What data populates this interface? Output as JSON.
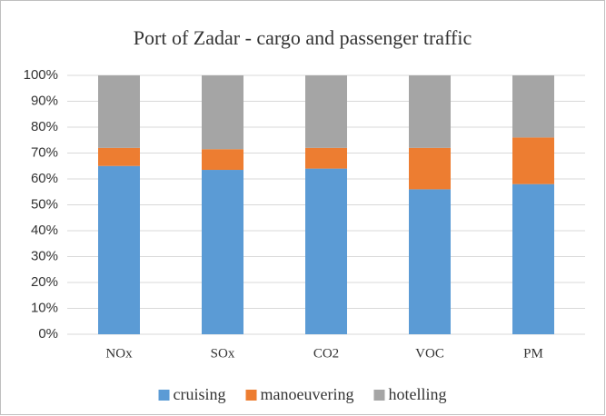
{
  "chart_data": {
    "type": "stacked_bar",
    "title": "Port of Zadar - cargo and passenger traffic",
    "categories": [
      "NOx",
      "SOx",
      "CO2",
      "VOC",
      "PM"
    ],
    "series": [
      {
        "name": "cruising",
        "color": "#5b9bd5",
        "values": [
          65,
          63.5,
          64,
          56,
          58
        ]
      },
      {
        "name": "manoeuvering",
        "color": "#ed7d31",
        "values": [
          7,
          8,
          8,
          16,
          18
        ]
      },
      {
        "name": "hotelling",
        "color": "#a5a5a5",
        "values": [
          28,
          28.5,
          28,
          28,
          24
        ]
      }
    ],
    "ylim": [
      0,
      100
    ],
    "yticks": [
      {
        "value": 0,
        "label": "0%"
      },
      {
        "value": 10,
        "label": "10%"
      },
      {
        "value": 20,
        "label": "20%"
      },
      {
        "value": 30,
        "label": "30%"
      },
      {
        "value": 40,
        "label": "40%"
      },
      {
        "value": 50,
        "label": "50%"
      },
      {
        "value": 60,
        "label": "60%"
      },
      {
        "value": 70,
        "label": "70%"
      },
      {
        "value": 80,
        "label": "80%"
      },
      {
        "value": 90,
        "label": "90%"
      },
      {
        "value": 100,
        "label": "100%"
      }
    ],
    "grid": true,
    "legend": "bottom"
  }
}
